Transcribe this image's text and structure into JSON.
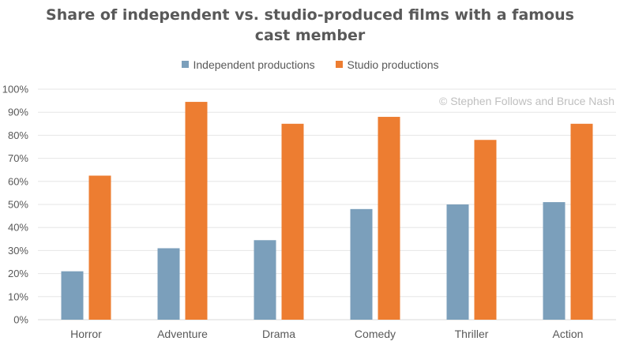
{
  "chart_data": {
    "type": "bar",
    "title_line1": "Share of independent vs. studio-produced films with a famous",
    "title_line2": "cast member",
    "categories": [
      "Horror",
      "Adventure",
      "Drama",
      "Comedy",
      "Thriller",
      "Action"
    ],
    "series": [
      {
        "name": "Independent productions",
        "color": "#7b9fbb",
        "values": [
          21,
          31,
          34.5,
          48,
          50,
          51
        ]
      },
      {
        "name": "Studio productions",
        "color": "#ed7d31",
        "values": [
          62.5,
          94.5,
          85,
          88,
          78,
          85
        ]
      }
    ],
    "y_ticks": [
      "0%",
      "10%",
      "20%",
      "30%",
      "40%",
      "50%",
      "60%",
      "70%",
      "80%",
      "90%",
      "100%"
    ],
    "ylim": [
      0,
      100
    ],
    "grid": true,
    "legend_position": "top",
    "watermark": "© Stephen Follows and Bruce Nash"
  }
}
